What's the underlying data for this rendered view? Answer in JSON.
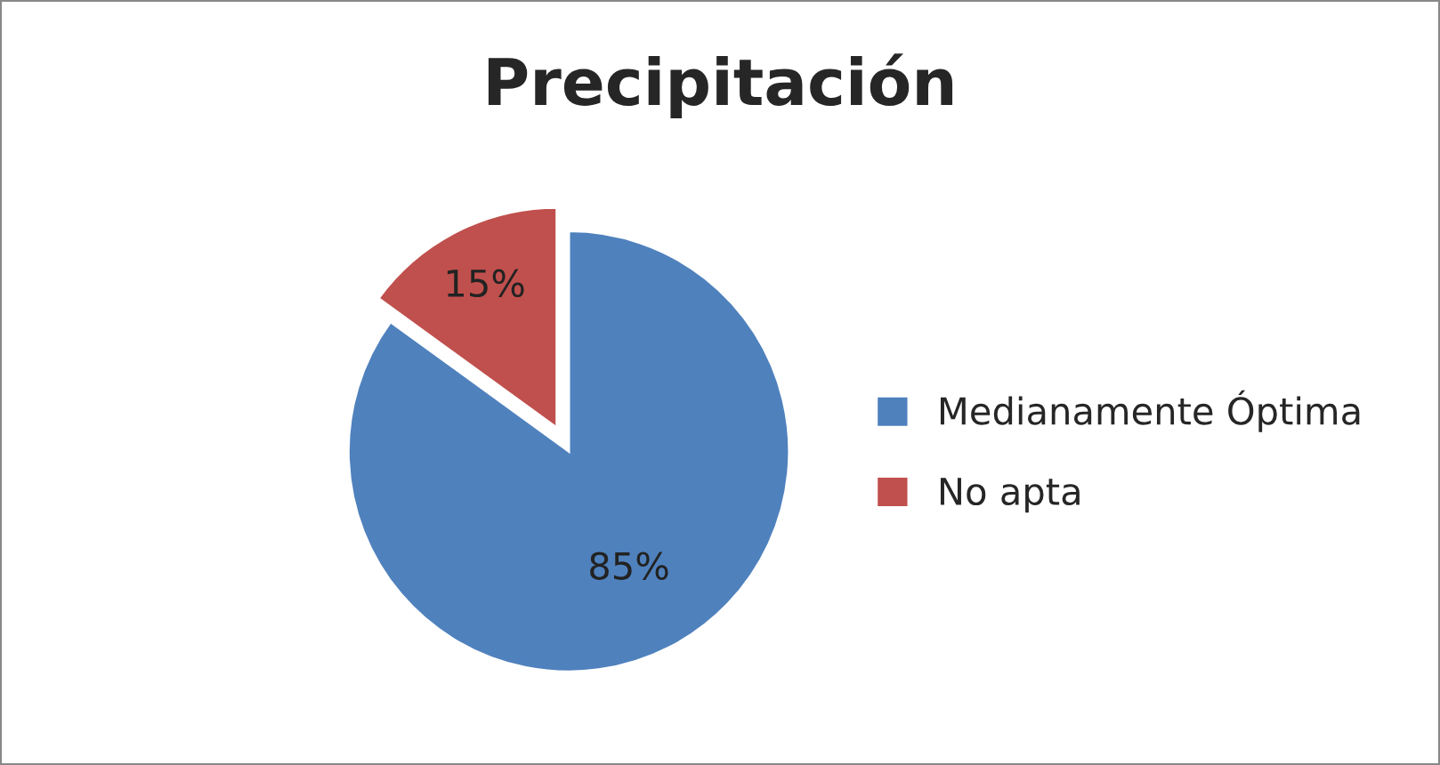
{
  "chart_data": {
    "type": "pie",
    "title": "Precipitación",
    "categories": [
      "Medianamente Óptima",
      "No apta"
    ],
    "values": [
      85,
      15
    ],
    "colors": [
      "#4f81bd",
      "#c0504d"
    ],
    "value_labels": [
      "85%",
      "15%"
    ],
    "legend": "right"
  }
}
